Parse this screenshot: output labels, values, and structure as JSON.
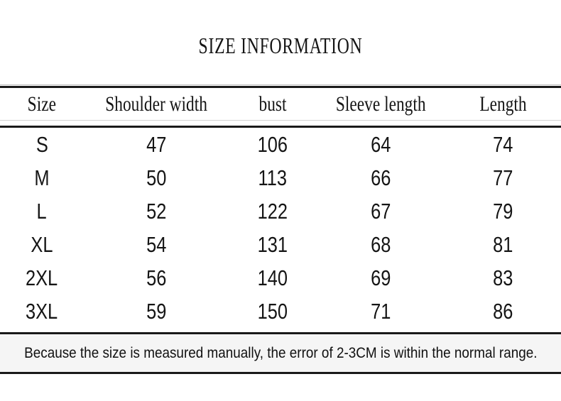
{
  "chart_data": {
    "type": "table",
    "title": "SIZE INFORMATION",
    "columns": [
      "Size",
      "Shoulder width",
      "bust",
      "Sleeve length",
      "Length"
    ],
    "rows": [
      [
        "S",
        "47",
        "106",
        "64",
        "74"
      ],
      [
        "M",
        "50",
        "113",
        "66",
        "77"
      ],
      [
        "L",
        "52",
        "122",
        "67",
        "79"
      ],
      [
        "XL",
        "54",
        "131",
        "68",
        "81"
      ],
      [
        "2XL",
        "56",
        "140",
        "69",
        "83"
      ],
      [
        "3XL",
        "59",
        "150",
        "71",
        "86"
      ]
    ],
    "note": "Because the size is measured manually, the error of 2-3CM is within the normal range.",
    "layout": {
      "grid": "horizontal rules only, no vertical lines",
      "note_position": "bottom band"
    }
  },
  "colors": {
    "text": "#151515",
    "rule": "#1a1a1a",
    "light_rule": "#d2d2d2",
    "note_background": "#f5f5f5",
    "page_background": "#ffffff"
  }
}
